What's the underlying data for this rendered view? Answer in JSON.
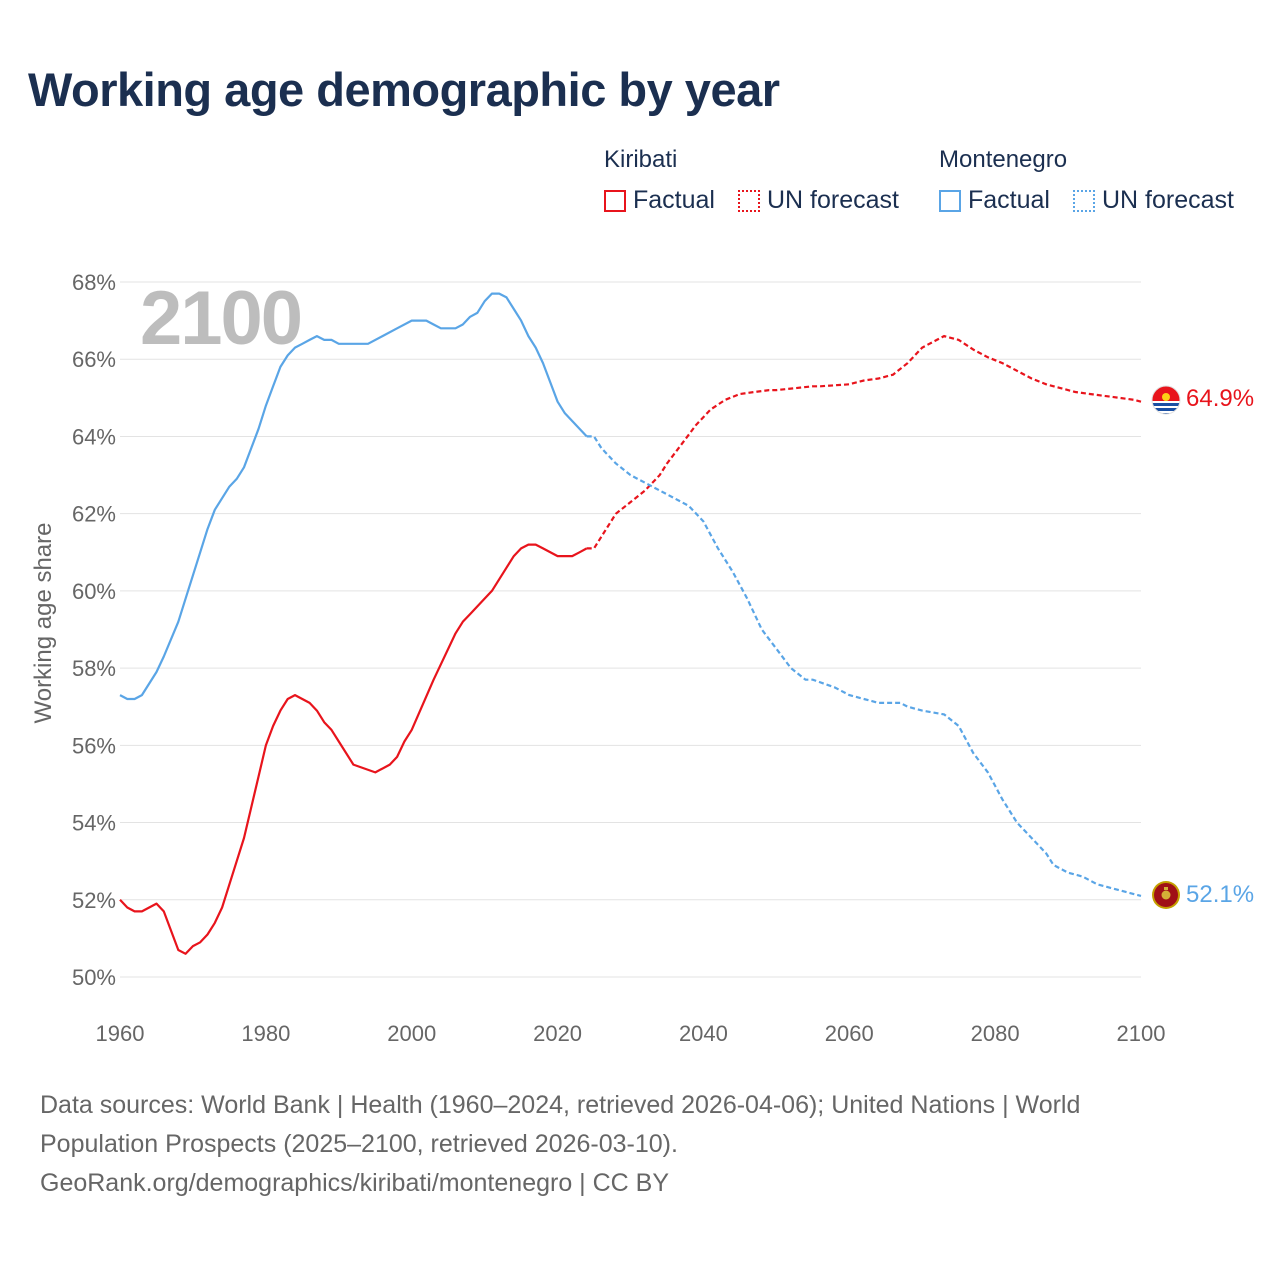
{
  "title": "Working age demographic by year",
  "legend": {
    "groups": [
      {
        "name": "Kiribati",
        "color": "#e8141c",
        "factual_label": "Factual",
        "forecast_label": "UN forecast"
      },
      {
        "name": "Montenegro",
        "color": "#5aa5e6",
        "factual_label": "Factual",
        "forecast_label": "UN forecast"
      }
    ]
  },
  "year_overlay": "2100",
  "end_labels": {
    "kiribati": "64.9%",
    "montenegro": "52.1%"
  },
  "footer": {
    "line1": "Data sources: World Bank | Health (1960–2024, retrieved 2026-04-06); United Nations | World",
    "line2": "Population Prospects (2025–2100, retrieved 2026-03-10).",
    "line3": "GeoRank.org/demographics/kiribati/montenegro | CC BY"
  },
  "chart_data": {
    "type": "line",
    "title": "Working age demographic by year",
    "xlabel": "",
    "ylabel": "Working age share",
    "xlim": [
      1960,
      2100
    ],
    "ylim": [
      50,
      68
    ],
    "x_ticks": [
      1960,
      1980,
      2000,
      2020,
      2040,
      2060,
      2080,
      2100
    ],
    "y_ticks": [
      50,
      52,
      54,
      56,
      58,
      60,
      62,
      64,
      66,
      68
    ],
    "y_tick_labels": [
      "50%",
      "52%",
      "54%",
      "56%",
      "58%",
      "60%",
      "62%",
      "64%",
      "66%",
      "68%"
    ],
    "grid": true,
    "series": [
      {
        "name": "Kiribati",
        "color": "#e8141c",
        "factual": {
          "x": [
            1960,
            1961,
            1962,
            1963,
            1965,
            1966,
            1968,
            1969,
            1970,
            1971,
            1972,
            1973,
            1974,
            1976,
            1977,
            1978,
            1979,
            1980,
            1981,
            1982,
            1983,
            1984,
            1985,
            1986,
            1987,
            1988,
            1989,
            1990,
            1992,
            1995,
            1997,
            1998,
            1999,
            2000,
            2003,
            2006,
            2007,
            2008,
            2010,
            2011,
            2012,
            2013,
            2014,
            2015,
            2016,
            2017,
            2018,
            2020,
            2022,
            2023,
            2024
          ],
          "y": [
            52.0,
            51.8,
            51.7,
            51.7,
            51.9,
            51.7,
            50.7,
            50.6,
            50.8,
            50.9,
            51.1,
            51.4,
            51.8,
            53.0,
            53.6,
            54.4,
            55.2,
            56.0,
            56.5,
            56.9,
            57.2,
            57.3,
            57.2,
            57.1,
            56.9,
            56.6,
            56.4,
            56.1,
            55.5,
            55.3,
            55.5,
            55.7,
            56.1,
            56.4,
            57.7,
            58.9,
            59.2,
            59.4,
            59.8,
            60.0,
            60.3,
            60.6,
            60.9,
            61.1,
            61.2,
            61.2,
            61.1,
            60.9,
            60.9,
            61.0,
            61.1
          ]
        },
        "forecast": {
          "x": [
            2024,
            2025,
            2026,
            2028,
            2030,
            2032,
            2033,
            2034,
            2035,
            2037,
            2039,
            2041,
            2043,
            2045,
            2047,
            2049,
            2050,
            2055,
            2056,
            2060,
            2062,
            2064,
            2066,
            2068,
            2070,
            2072,
            2073,
            2075,
            2077,
            2079,
            2081,
            2083,
            2085,
            2087,
            2089,
            2091,
            2093,
            2095,
            2097,
            2099,
            2100
          ],
          "y": [
            61.1,
            61.1,
            61.4,
            62.0,
            62.3,
            62.6,
            62.8,
            63.0,
            63.3,
            63.8,
            64.3,
            64.7,
            64.95,
            65.1,
            65.15,
            65.2,
            65.2,
            65.3,
            65.3,
            65.35,
            65.45,
            65.5,
            65.6,
            65.9,
            66.3,
            66.5,
            66.6,
            66.5,
            66.25,
            66.05,
            65.9,
            65.7,
            65.5,
            65.35,
            65.25,
            65.15,
            65.1,
            65.05,
            65.0,
            64.95,
            64.9
          ]
        }
      },
      {
        "name": "Montenegro",
        "color": "#5aa5e6",
        "factual": {
          "x": [
            1960,
            1961,
            1962,
            1963,
            1965,
            1966,
            1968,
            1969,
            1970,
            1971,
            1972,
            1973,
            1974,
            1975,
            1976,
            1977,
            1978,
            1979,
            1980,
            1981,
            1982,
            1983,
            1984,
            1985,
            1986,
            1987,
            1988,
            1989,
            1990,
            1992,
            1994,
            1996,
            1998,
            2000,
            2002,
            2003,
            2004,
            2005,
            2006,
            2007,
            2008,
            2009,
            2010,
            2011,
            2012,
            2013,
            2014,
            2015,
            2016,
            2017,
            2018,
            2019,
            2020,
            2021,
            2022,
            2023,
            2024
          ],
          "y": [
            57.3,
            57.2,
            57.2,
            57.3,
            57.9,
            58.3,
            59.2,
            59.8,
            60.4,
            61.0,
            61.6,
            62.1,
            62.4,
            62.7,
            62.9,
            63.2,
            63.7,
            64.2,
            64.8,
            65.3,
            65.8,
            66.1,
            66.3,
            66.4,
            66.5,
            66.6,
            66.5,
            66.5,
            66.4,
            66.4,
            66.4,
            66.6,
            66.8,
            67.0,
            67.0,
            66.9,
            66.8,
            66.8,
            66.8,
            66.9,
            67.1,
            67.2,
            67.5,
            67.7,
            67.7,
            67.6,
            67.3,
            67.0,
            66.6,
            66.3,
            65.9,
            65.4,
            64.9,
            64.6,
            64.4,
            64.2,
            64.0
          ]
        },
        "forecast": {
          "x": [
            2024,
            2025,
            2026,
            2028,
            2030,
            2032,
            2034,
            2036,
            2038,
            2040,
            2042,
            2044,
            2046,
            2048,
            2050,
            2052,
            2054,
            2055,
            2058,
            2060,
            2062,
            2064,
            2067,
            2068,
            2070,
            2073,
            2075,
            2077,
            2079,
            2081,
            2083,
            2085,
            2087,
            2088,
            2090,
            2092,
            2094,
            2096,
            2098,
            2100
          ],
          "y": [
            64.0,
            64.0,
            63.7,
            63.3,
            63.0,
            62.8,
            62.6,
            62.4,
            62.2,
            61.8,
            61.1,
            60.5,
            59.8,
            59.0,
            58.5,
            58.0,
            57.7,
            57.7,
            57.5,
            57.3,
            57.2,
            57.1,
            57.1,
            57.0,
            56.9,
            56.8,
            56.5,
            55.8,
            55.3,
            54.6,
            54.0,
            53.6,
            53.2,
            52.9,
            52.7,
            52.6,
            52.4,
            52.3,
            52.2,
            52.1
          ]
        }
      }
    ]
  }
}
